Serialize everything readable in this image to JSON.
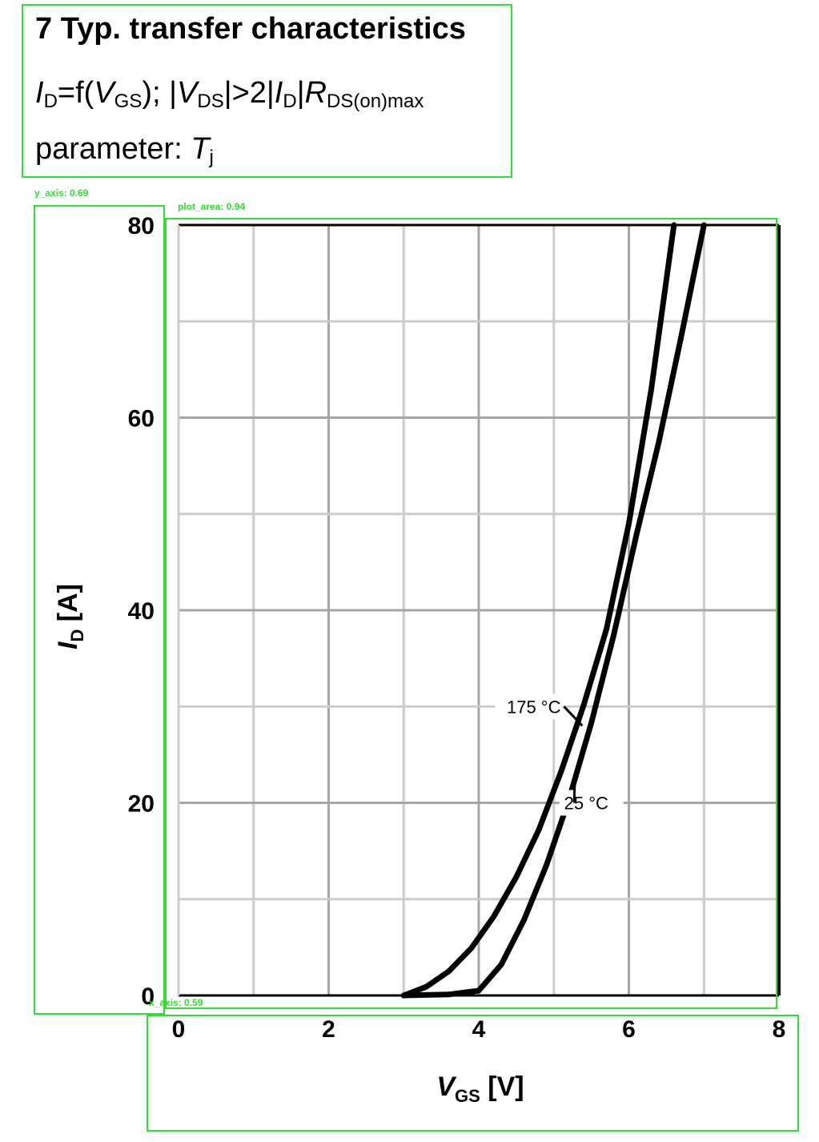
{
  "header": {
    "title": "7 Typ. transfer characteristics",
    "formula": {
      "i1": "I",
      "s1": "D",
      "t1": "=f(",
      "i2": "V",
      "s2": "GS",
      "t2": "); |",
      "i3": "V",
      "s3": "DS",
      "t3": "|>2|",
      "i4": "I",
      "s4": "D",
      "t4": "|",
      "i5": "R",
      "s5": "DS(on)max"
    },
    "parameter": {
      "prefix": "parameter: ",
      "symbol": "T",
      "sub": "j"
    }
  },
  "annotations": {
    "y_axis_box": "y_axis: 0.69",
    "plot_area_box": "plot_area: 0.94",
    "x_axis_box": "x_axis: 0.59"
  },
  "colors": {
    "annotation": "#33dd33",
    "grid_major": "#a6a6a6",
    "grid_minor": "#cccccc",
    "curve": "#000000"
  },
  "chart_data": {
    "type": "line",
    "title": "",
    "xlabel": {
      "symbol": "V",
      "sub": "GS",
      "unit": " [V]"
    },
    "ylabel": {
      "symbol": "I",
      "sub": "D",
      "unit": " [A]"
    },
    "xlim": [
      0,
      8
    ],
    "ylim": [
      0,
      80
    ],
    "x_ticks": [
      0,
      2,
      4,
      6,
      8
    ],
    "y_ticks": [
      0,
      20,
      40,
      60,
      80
    ],
    "grid": true,
    "series": [
      {
        "name": "175 °C",
        "x": [
          3.0,
          3.3,
          3.6,
          3.9,
          4.2,
          4.5,
          4.8,
          5.1,
          5.4,
          5.7,
          6.0,
          6.3,
          6.6
        ],
        "y": [
          0.0,
          0.9,
          2.5,
          4.9,
          8.2,
          12.3,
          17.2,
          23.3,
          30.2,
          38.0,
          49.0,
          63.0,
          80.0
        ]
      },
      {
        "name": "25 °C",
        "x": [
          3.0,
          3.6,
          4.0,
          4.3,
          4.6,
          4.9,
          5.2,
          5.5,
          5.8,
          6.1,
          6.4,
          6.7,
          7.0
        ],
        "y": [
          0.0,
          0.1,
          0.5,
          3.2,
          7.8,
          13.5,
          20.3,
          28.3,
          37.5,
          47.8,
          57.5,
          68.5,
          80.0
        ]
      }
    ]
  }
}
